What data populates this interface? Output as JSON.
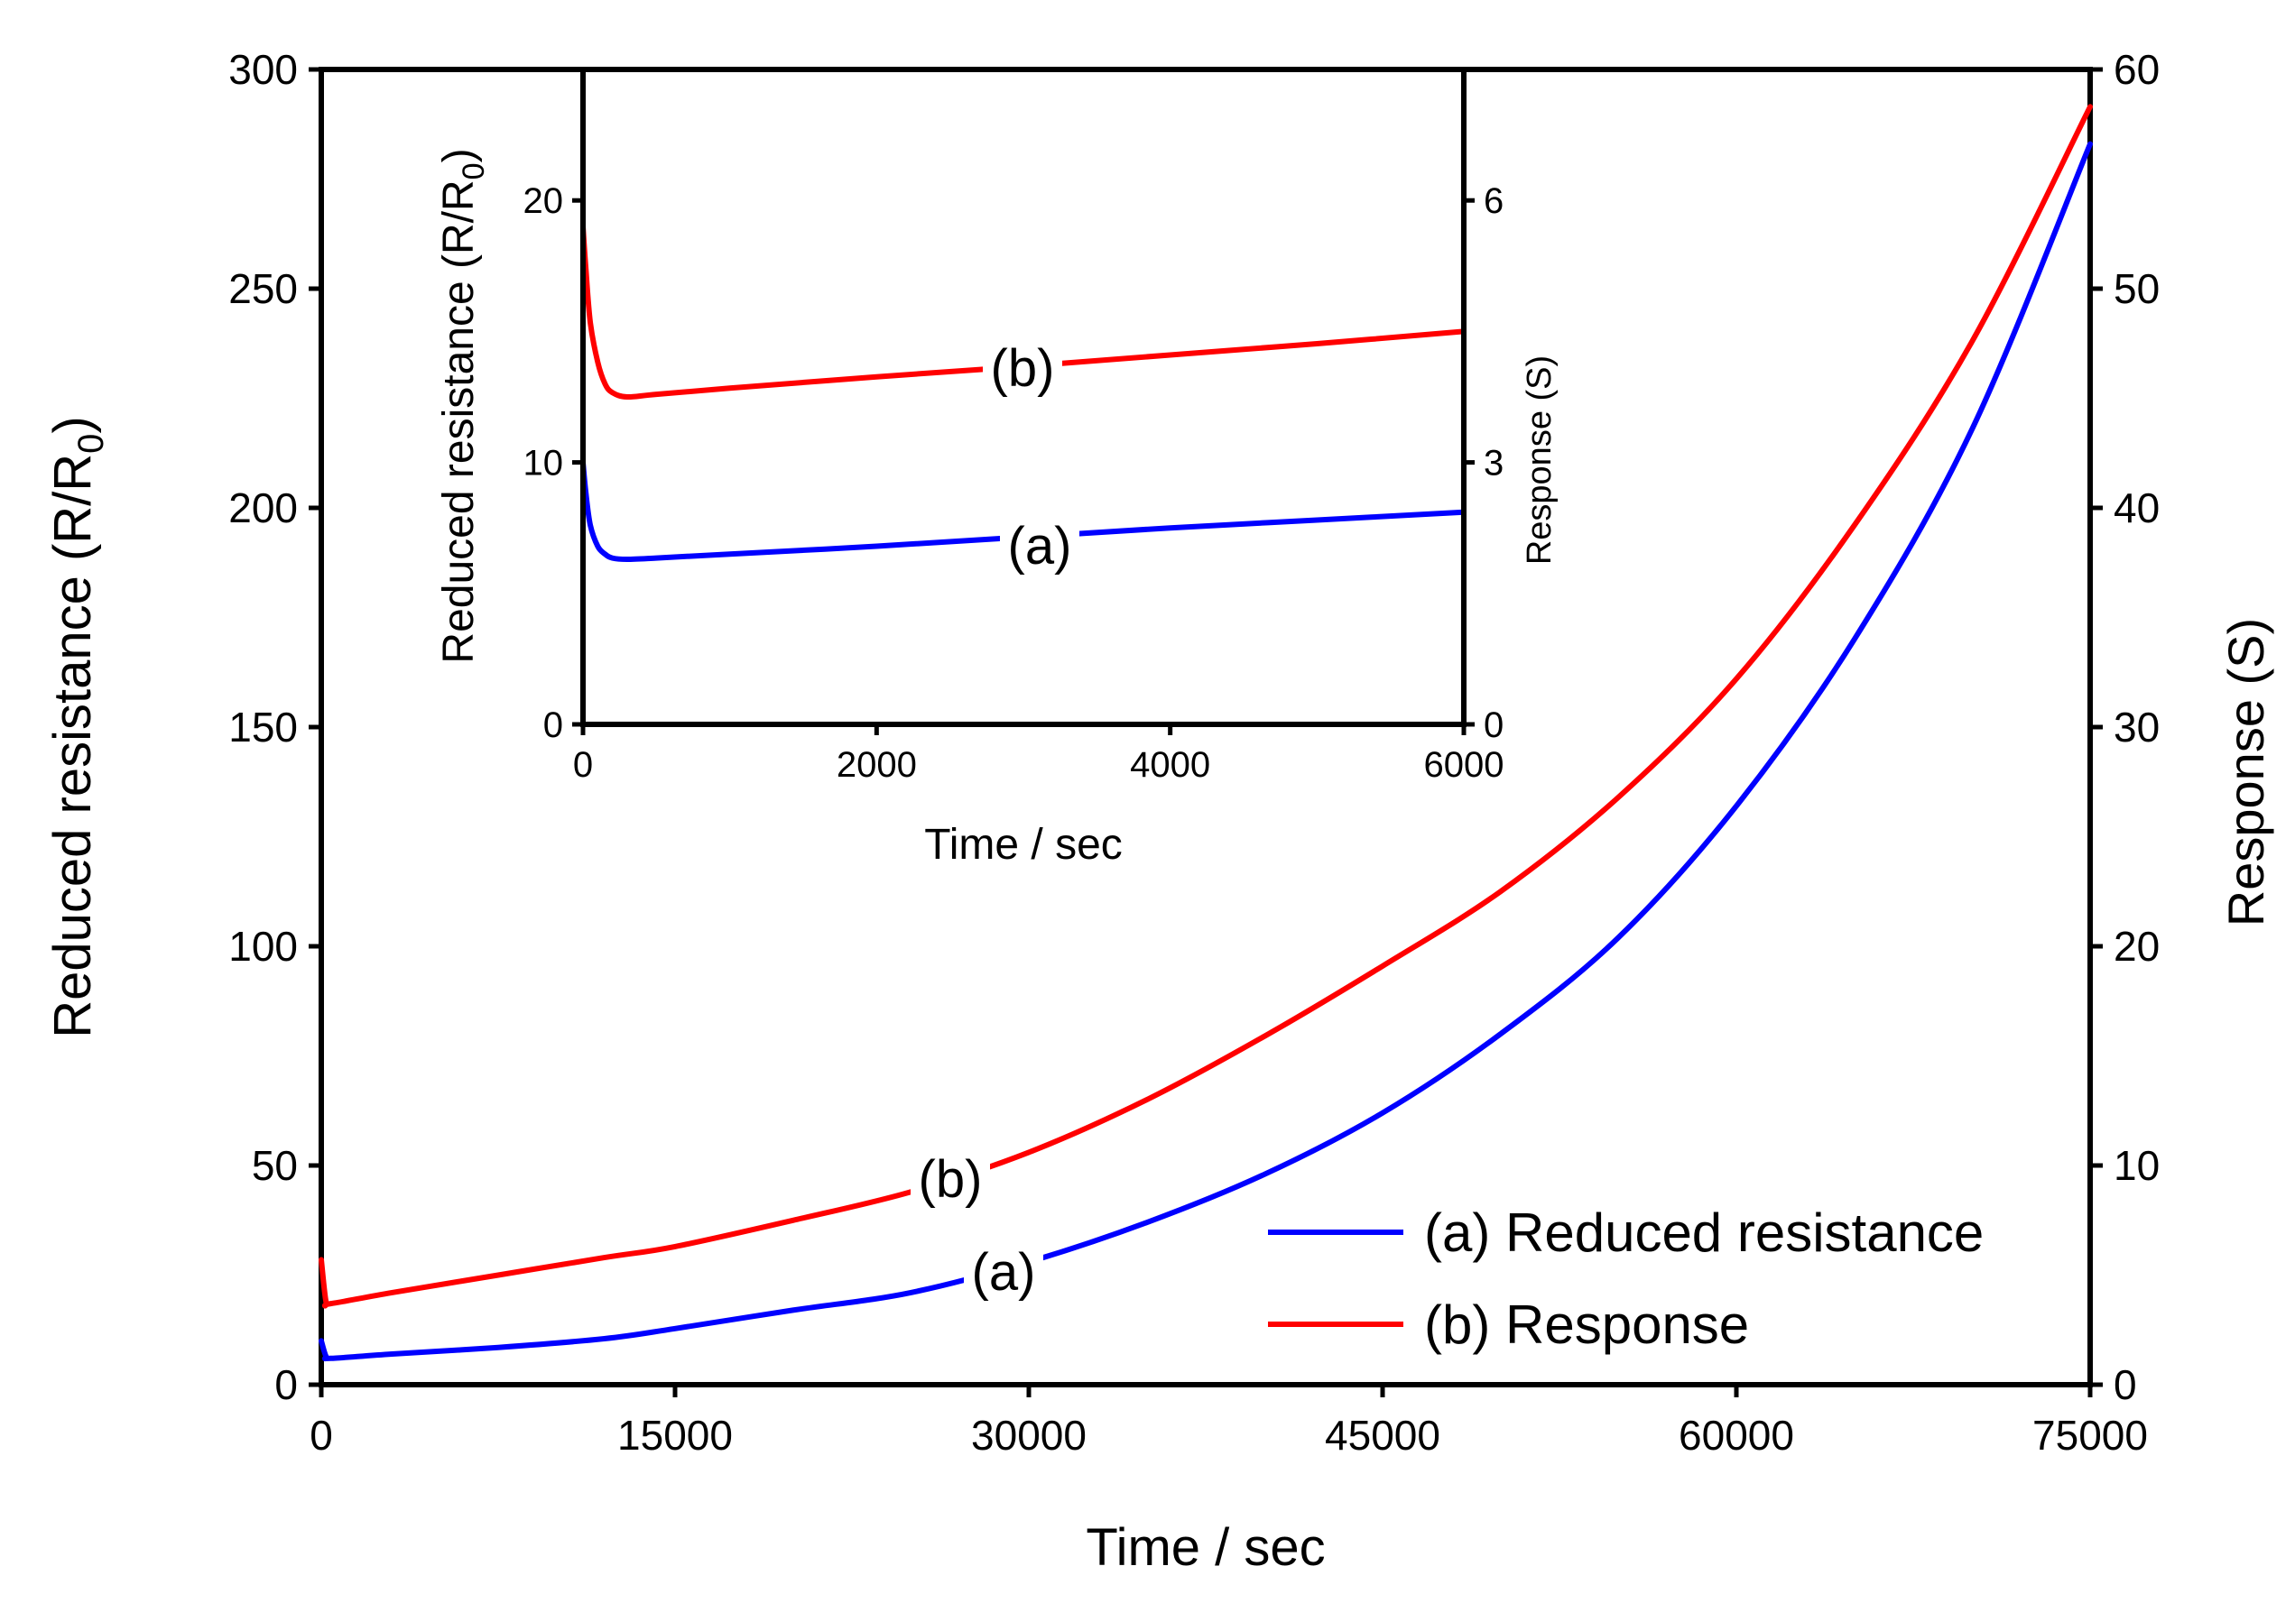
{
  "chart_data": [
    {
      "type": "line",
      "role": "main",
      "xlabel": "Time / sec",
      "ylabel_left": "Reduced resistance (R/R",
      "ylabel_left_sub": "0",
      "ylabel_left_close": ")",
      "ylabel_right": "Response (S)",
      "xlim": [
        0,
        75000
      ],
      "ylim_left": [
        0,
        300
      ],
      "ylim_right": [
        0,
        60
      ],
      "x_ticks": [
        "0",
        "15000",
        "30000",
        "45000",
        "60000",
        "75000"
      ],
      "y_left_ticks": [
        "0",
        "50",
        "100",
        "150",
        "200",
        "250",
        "300"
      ],
      "y_right_ticks": [
        "0",
        "10",
        "20",
        "30",
        "40",
        "50",
        "60"
      ],
      "series": [
        {
          "name": "(a) Reduced resistance",
          "label": "(a)",
          "axis": "left",
          "color": "#0000ff",
          "x": [
            0,
            200,
            400,
            3000,
            7500,
            12000,
            15000,
            20000,
            25000,
            30000,
            35000,
            40000,
            45000,
            50000,
            55000,
            60000,
            65000,
            70000,
            75000
          ],
          "y": [
            10,
            6.5,
            6,
            7,
            8.5,
            10.5,
            12.8,
            17,
            21,
            28,
            37,
            48,
            62,
            80,
            102,
            132,
            170,
            218,
            283
          ]
        },
        {
          "name": "(b) Response",
          "label": "(b)",
          "axis": "right",
          "color": "#ff0000",
          "x": [
            0,
            200,
            400,
            3000,
            7500,
            12000,
            15000,
            20000,
            25000,
            30000,
            35000,
            40000,
            45000,
            50000,
            55000,
            60000,
            65000,
            70000,
            75000
          ],
          "y": [
            5.7,
            3.8,
            3.7,
            4.2,
            5,
            5.8,
            6.3,
            7.5,
            8.8,
            10.6,
            13,
            15.9,
            19.1,
            22.5,
            26.8,
            32.2,
            39.2,
            47.6,
            58.3
          ]
        }
      ],
      "legend": {
        "position": "bottom-right",
        "entries": [
          "(a) Reduced resistance",
          "(b) Response"
        ]
      }
    },
    {
      "type": "line",
      "role": "inset",
      "xlabel": "Time / sec",
      "ylabel_left": "Reduced resistance (R/R",
      "ylabel_left_sub": "0",
      "ylabel_left_close": ")",
      "ylabel_right": "Response (S)",
      "xlim": [
        0,
        6000
      ],
      "ylim_left": [
        0,
        25
      ],
      "ylim_right": [
        0,
        7.5
      ],
      "x_ticks": [
        "0",
        "2000",
        "4000",
        "6000"
      ],
      "y_left_ticks": [
        "0",
        "10",
        "20"
      ],
      "y_right_ticks": [
        "0",
        "3",
        "6"
      ],
      "series": [
        {
          "name": "(a) Reduced resistance",
          "label": "(a)",
          "axis": "left",
          "color": "#0000ff",
          "x": [
            0,
            20,
            50,
            100,
            150,
            200,
            300,
            500,
            1000,
            2000,
            3000,
            4000,
            5000,
            6000
          ],
          "y": [
            10,
            8.8,
            7.6,
            6.8,
            6.5,
            6.35,
            6.3,
            6.35,
            6.5,
            6.8,
            7.15,
            7.5,
            7.8,
            8.1
          ]
        },
        {
          "name": "(b) Response",
          "label": "(b)",
          "axis": "right",
          "color": "#ff0000",
          "x": [
            0,
            20,
            50,
            100,
            150,
            200,
            300,
            500,
            1000,
            2000,
            3000,
            4000,
            5000,
            6000
          ],
          "y": [
            5.7,
            5.2,
            4.6,
            4.15,
            3.9,
            3.8,
            3.75,
            3.78,
            3.85,
            3.98,
            4.1,
            4.23,
            4.36,
            4.5
          ]
        }
      ]
    }
  ]
}
